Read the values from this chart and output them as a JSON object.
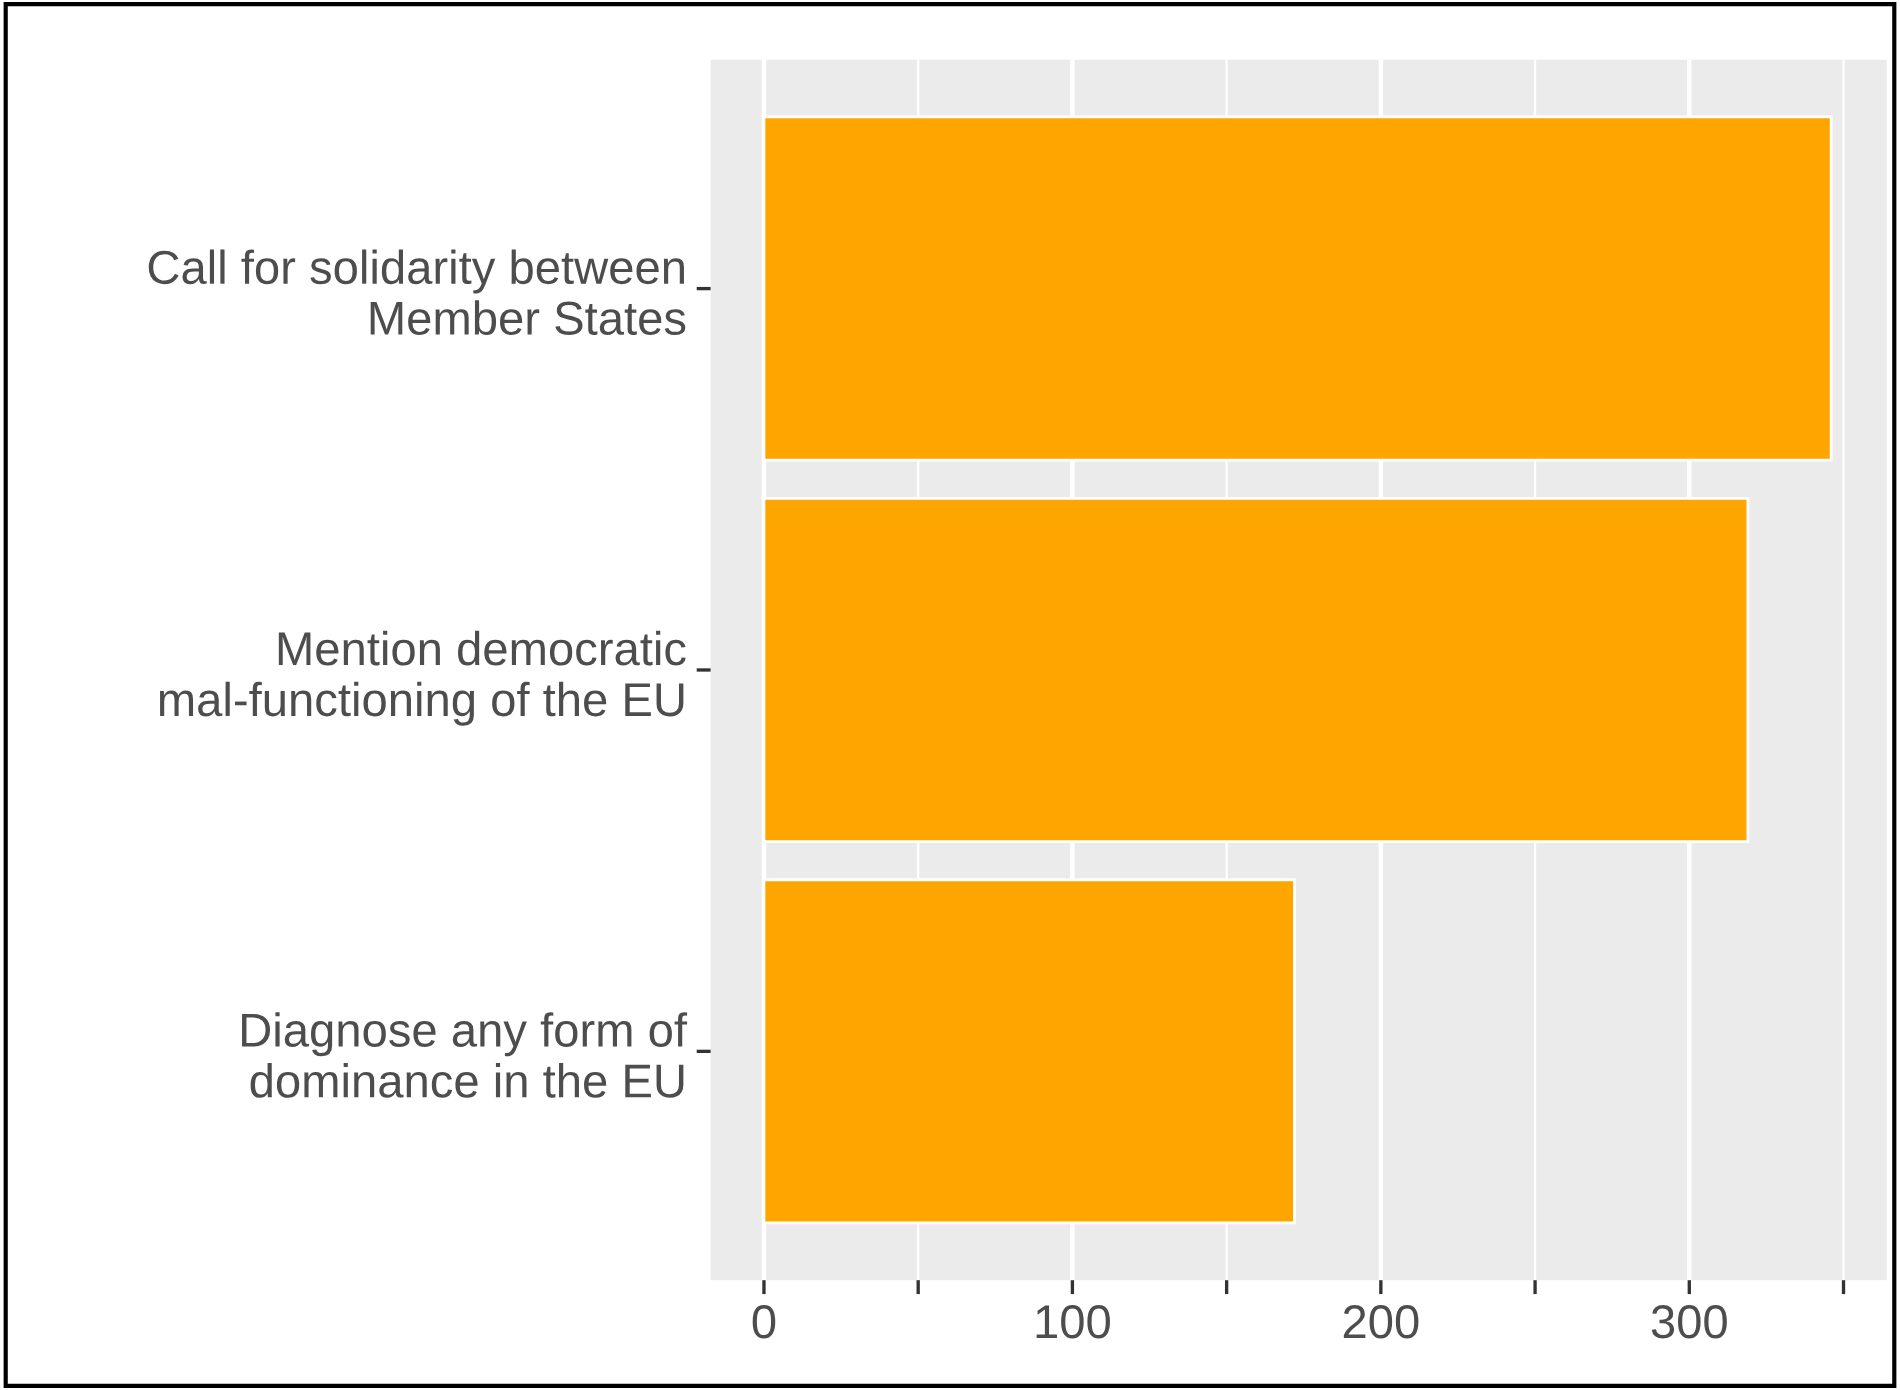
{
  "chart_data": {
    "type": "bar",
    "orientation": "horizontal",
    "categories": [
      "Call for solidarity between\nMember States",
      "Mention democratic\nmal-functioning of the EU",
      "Diagnose any form of\ndominance in the EU"
    ],
    "values": [
      346,
      319,
      172
    ],
    "color": "#ffa500",
    "xlim": [
      -17.3,
      364
    ],
    "xticks": [
      0,
      {
        "value": 50,
        "label": null
      },
      100,
      {
        "value": 150,
        "label": null
      },
      200,
      {
        "value": 250,
        "label": null
      },
      300,
      {
        "value": 350,
        "label": null
      }
    ],
    "grid": "x"
  }
}
